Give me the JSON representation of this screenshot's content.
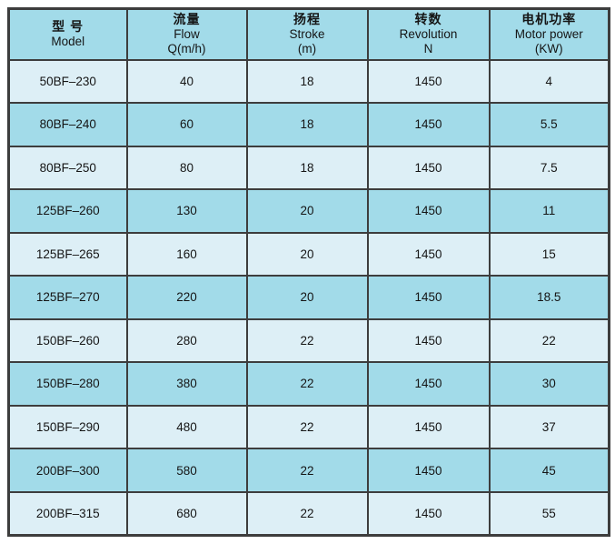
{
  "colors": {
    "header_and_even_row_bg": "#a2dbe9",
    "odd_row_bg": "#ddeff6",
    "grid_border": "#3d3d3d",
    "text": "#151515",
    "page_bg": "#ffffff"
  },
  "table": {
    "header": [
      {
        "zh": "型  号",
        "en": "Model",
        "sub": ""
      },
      {
        "zh": "流量",
        "en": "Flow",
        "sub": "Q(m/h)"
      },
      {
        "zh": "扬程",
        "en": "Stroke",
        "sub": "(m)"
      },
      {
        "zh": "转数",
        "en": "Revolution",
        "sub": "N"
      },
      {
        "zh": "电机功率",
        "en": "Motor power",
        "sub": "(KW)"
      }
    ],
    "column_keys": [
      "model",
      "flow",
      "stroke",
      "revolution",
      "power"
    ],
    "rows": [
      {
        "model": "50BF–230",
        "flow": "40",
        "stroke": "18",
        "revolution": "1450",
        "power": "4"
      },
      {
        "model": "80BF–240",
        "flow": "60",
        "stroke": "18",
        "revolution": "1450",
        "power": "5.5"
      },
      {
        "model": "80BF–250",
        "flow": "80",
        "stroke": "18",
        "revolution": "1450",
        "power": "7.5"
      },
      {
        "model": "125BF–260",
        "flow": "130",
        "stroke": "20",
        "revolution": "1450",
        "power": "11"
      },
      {
        "model": "125BF–265",
        "flow": "160",
        "stroke": "20",
        "revolution": "1450",
        "power": "15"
      },
      {
        "model": "125BF–270",
        "flow": "220",
        "stroke": "20",
        "revolution": "1450",
        "power": "18.5"
      },
      {
        "model": "150BF–260",
        "flow": "280",
        "stroke": "22",
        "revolution": "1450",
        "power": "22"
      },
      {
        "model": "150BF–280",
        "flow": "380",
        "stroke": "22",
        "revolution": "1450",
        "power": "30"
      },
      {
        "model": "150BF–290",
        "flow": "480",
        "stroke": "22",
        "revolution": "1450",
        "power": "37"
      },
      {
        "model": "200BF–300",
        "flow": "580",
        "stroke": "22",
        "revolution": "1450",
        "power": "45"
      },
      {
        "model": "200BF–315",
        "flow": "680",
        "stroke": "22",
        "revolution": "1450",
        "power": "55"
      }
    ]
  }
}
